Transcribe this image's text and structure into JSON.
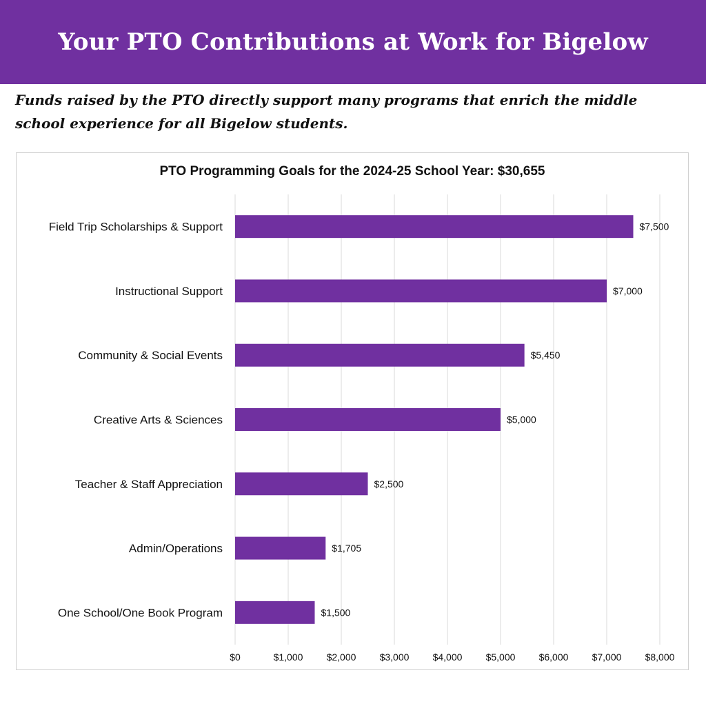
{
  "header": {
    "title": "Your PTO Contributions at Work for Bigelow",
    "subtitle": "Funds raised by the PTO directly support many programs that enrich the middle school experience for all Bigelow students."
  },
  "colors": {
    "banner": "#7030a0",
    "bar": "#7030a0",
    "grid": "#d9d9d9"
  },
  "chart_data": {
    "type": "bar",
    "orientation": "horizontal",
    "title": "PTO Programming Goals for the 2024-25 School Year: $30,655",
    "xlabel": "",
    "ylabel": "",
    "categories": [
      "Field Trip Scholarships & Support",
      "Instructional Support",
      "Community & Social Events",
      "Creative Arts & Sciences",
      "Teacher & Staff Appreciation",
      "Admin/Operations",
      "One School/One Book Program"
    ],
    "values": [
      7500,
      7000,
      5450,
      5000,
      2500,
      1705,
      1500
    ],
    "data_labels": [
      "$7,500",
      "$7,000",
      "$5,450",
      "$5,000",
      "$2,500",
      "$1,705",
      "$1,500"
    ],
    "xlim": [
      0,
      8000
    ],
    "x_ticks": [
      0,
      1000,
      2000,
      3000,
      4000,
      5000,
      6000,
      7000,
      8000
    ],
    "x_tick_labels": [
      "$0",
      "$1,000",
      "$2,000",
      "$3,000",
      "$4,000",
      "$5,000",
      "$6,000",
      "$7,000",
      "$8,000"
    ],
    "grid": true,
    "legend": "none"
  }
}
